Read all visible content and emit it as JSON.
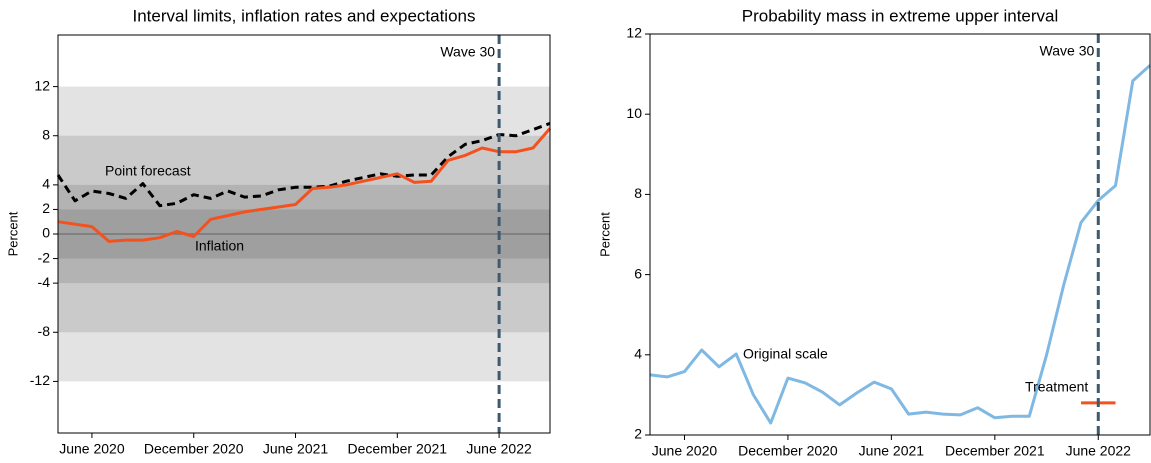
{
  "chart_data": [
    {
      "type": "line",
      "title": "Interval limits, inflation rates and expectations",
      "ylabel": "Percent",
      "x": [
        "2020-04",
        "2020-05",
        "2020-06",
        "2020-07",
        "2020-08",
        "2020-09",
        "2020-10",
        "2020-11",
        "2020-12",
        "2021-01",
        "2021-02",
        "2021-03",
        "2021-04",
        "2021-05",
        "2021-06",
        "2021-07",
        "2021-08",
        "2021-09",
        "2021-10",
        "2021-11",
        "2021-12",
        "2022-01",
        "2022-02",
        "2022-03",
        "2022-04",
        "2022-05",
        "2022-06",
        "2022-07",
        "2022-08",
        "2022-09"
      ],
      "series": [
        {
          "name": "Point forecast",
          "color": "#000000",
          "style": "dashed",
          "values": [
            4.8,
            2.7,
            3.5,
            3.3,
            2.9,
            4.1,
            2.3,
            2.5,
            3.2,
            2.9,
            3.5,
            3.0,
            3.1,
            3.6,
            3.8,
            3.8,
            3.9,
            4.3,
            4.6,
            4.9,
            4.7,
            4.8,
            4.8,
            6.3,
            7.3,
            7.6,
            8.1,
            8.0,
            8.5,
            9.0
          ]
        },
        {
          "name": "Inflation",
          "color": "#f4511e",
          "style": "solid",
          "values": [
            1.0,
            0.8,
            0.6,
            -0.6,
            -0.5,
            -0.5,
            -0.3,
            0.2,
            -0.2,
            1.2,
            1.5,
            1.8,
            2.0,
            2.2,
            2.4,
            3.7,
            3.8,
            4.0,
            4.3,
            4.6,
            4.9,
            4.2,
            4.3,
            6.0,
            6.4,
            7.0,
            6.7,
            6.7,
            7.0,
            8.6
          ]
        }
      ],
      "bands": [
        [
          -12,
          12
        ],
        [
          -8,
          8
        ],
        [
          -4,
          4
        ],
        [
          -2,
          2
        ]
      ],
      "hlines": [
        0
      ],
      "vline": {
        "x": "2022-06",
        "label": "Wave 30",
        "color": "#3d5a6e"
      },
      "annotations": [
        "Point forecast",
        "Inflation"
      ],
      "xlim": [
        "2020-04",
        "2022-09"
      ],
      "xticks": [
        {
          "value": "2020-06",
          "label": "June 2020"
        },
        {
          "value": "2020-12",
          "label": "December 2020"
        },
        {
          "value": "2021-06",
          "label": "June 2021"
        },
        {
          "value": "2021-12",
          "label": "December 2021"
        },
        {
          "value": "2022-06",
          "label": "June 2022"
        }
      ],
      "ylim": [
        -16.2,
        16.2
      ],
      "yticks": [
        12,
        8,
        4,
        2,
        0,
        -2,
        -4,
        -8,
        -12
      ]
    },
    {
      "type": "line",
      "title": "Probability mass in extreme upper interval",
      "ylabel": "Percent",
      "x": [
        "2020-04",
        "2020-05",
        "2020-06",
        "2020-07",
        "2020-08",
        "2020-09",
        "2020-10",
        "2020-11",
        "2020-12",
        "2021-01",
        "2021-02",
        "2021-03",
        "2021-04",
        "2021-05",
        "2021-06",
        "2021-07",
        "2021-08",
        "2021-09",
        "2021-10",
        "2021-11",
        "2021-12",
        "2022-01",
        "2022-02",
        "2022-03",
        "2022-04",
        "2022-05",
        "2022-06",
        "2022-07",
        "2022-08",
        "2022-09"
      ],
      "series": [
        {
          "name": "Original scale",
          "color": "#7fb9e3",
          "style": "solid",
          "values": [
            3.5,
            3.45,
            3.58,
            4.12,
            3.7,
            4.02,
            3.0,
            2.3,
            3.42,
            3.3,
            3.07,
            2.75,
            3.05,
            3.32,
            3.15,
            2.52,
            2.57,
            2.52,
            2.5,
            2.68,
            2.43,
            2.47,
            2.47,
            4.0,
            5.75,
            7.3,
            7.85,
            8.22,
            10.83,
            11.22
          ]
        }
      ],
      "treatment": {
        "label": "Treatment",
        "x": [
          "2022-05",
          "2022-07"
        ],
        "value": 2.8,
        "color": "#f4511e"
      },
      "vline": {
        "x": "2022-06",
        "label": "Wave 30",
        "color": "#3d5a6e"
      },
      "annotations": [
        "Original scale"
      ],
      "xlim": [
        "2020-04",
        "2022-09"
      ],
      "xticks": [
        {
          "value": "2020-06",
          "label": "June 2020"
        },
        {
          "value": "2020-12",
          "label": "December 2020"
        },
        {
          "value": "2021-06",
          "label": "June 2021"
        },
        {
          "value": "2021-12",
          "label": "December 2021"
        },
        {
          "value": "2022-06",
          "label": "June 2022"
        }
      ],
      "ylim": [
        2,
        12
      ],
      "yticks": [
        2,
        4,
        6,
        8,
        10,
        12
      ]
    }
  ]
}
